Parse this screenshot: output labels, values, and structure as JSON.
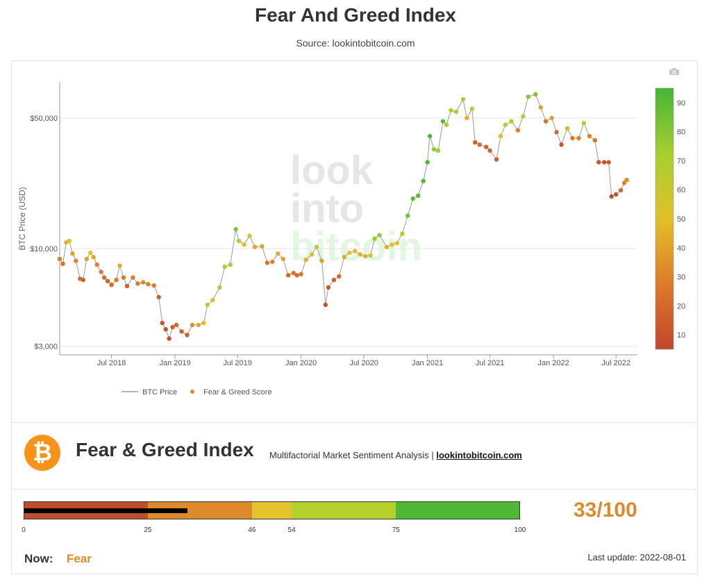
{
  "page": {
    "title": "Fear And Greed Index",
    "subtitle": "Source: lookintobitcoin.com"
  },
  "chart_data": {
    "type": "scatter",
    "ylabel": "BTC Price (USD)",
    "yscale": "log",
    "ylim": [
      2700,
      78000
    ],
    "xlim": [
      "2018-02-01",
      "2022-09-01"
    ],
    "yticks": [
      3000,
      10000,
      50000
    ],
    "ytick_labels": [
      "$3,000",
      "$10,000",
      "$50,000"
    ],
    "xticks": [
      "2018-07-01",
      "2019-01-01",
      "2019-07-01",
      "2020-01-01",
      "2020-07-01",
      "2021-01-01",
      "2021-07-01",
      "2022-01-01",
      "2022-07-01"
    ],
    "xtick_labels": [
      "Jul 2018",
      "Jan 2019",
      "Jul 2019",
      "Jan 2020",
      "Jul 2020",
      "Jan 2021",
      "Jul 2021",
      "Jan 2022",
      "Jul 2022"
    ],
    "legend": [
      "BTC Price",
      "Fear & Greed Score"
    ],
    "legend_position": "bottom-left",
    "grid": true,
    "watermark": "lookintobitcoin",
    "colorbar": {
      "ticks": [
        10,
        20,
        30,
        40,
        50,
        60,
        70,
        80,
        90
      ],
      "range": [
        5,
        95
      ]
    },
    "series": [
      {
        "name": "BTC Price",
        "points": [
          [
            "2018-02-01",
            8800,
            30
          ],
          [
            "2018-02-10",
            8300,
            25
          ],
          [
            "2018-02-20",
            10800,
            45
          ],
          [
            "2018-03-01",
            11000,
            50
          ],
          [
            "2018-03-10",
            9400,
            40
          ],
          [
            "2018-03-20",
            8600,
            30
          ],
          [
            "2018-04-01",
            6900,
            20
          ],
          [
            "2018-04-10",
            6800,
            18
          ],
          [
            "2018-04-20",
            8800,
            40
          ],
          [
            "2018-05-01",
            9500,
            50
          ],
          [
            "2018-05-10",
            9000,
            42
          ],
          [
            "2018-05-20",
            8200,
            30
          ],
          [
            "2018-06-01",
            7500,
            27
          ],
          [
            "2018-06-10",
            7000,
            22
          ],
          [
            "2018-06-20",
            6700,
            18
          ],
          [
            "2018-07-01",
            6400,
            20
          ],
          [
            "2018-07-15",
            6800,
            28
          ],
          [
            "2018-07-25",
            8100,
            45
          ],
          [
            "2018-08-05",
            7000,
            28
          ],
          [
            "2018-08-15",
            6300,
            18
          ],
          [
            "2018-09-01",
            7000,
            30
          ],
          [
            "2018-09-15",
            6500,
            28
          ],
          [
            "2018-10-01",
            6600,
            32
          ],
          [
            "2018-10-15",
            6450,
            30
          ],
          [
            "2018-11-01",
            6350,
            28
          ],
          [
            "2018-11-15",
            5500,
            15
          ],
          [
            "2018-11-25",
            4000,
            10
          ],
          [
            "2018-12-05",
            3700,
            10
          ],
          [
            "2018-12-15",
            3300,
            7
          ],
          [
            "2018-12-25",
            3800,
            15
          ],
          [
            "2019-01-05",
            3900,
            20
          ],
          [
            "2019-01-20",
            3600,
            18
          ],
          [
            "2019-02-05",
            3450,
            15
          ],
          [
            "2019-02-20",
            3900,
            35
          ],
          [
            "2019-03-10",
            3900,
            42
          ],
          [
            "2019-03-25",
            4000,
            48
          ],
          [
            "2019-04-05",
            5000,
            62
          ],
          [
            "2019-04-20",
            5300,
            60
          ],
          [
            "2019-05-10",
            6200,
            68
          ],
          [
            "2019-05-25",
            8000,
            70
          ],
          [
            "2019-06-10",
            8200,
            68
          ],
          [
            "2019-06-26",
            12700,
            82
          ],
          [
            "2019-07-05",
            11000,
            65
          ],
          [
            "2019-07-20",
            10500,
            55
          ],
          [
            "2019-08-05",
            11700,
            60
          ],
          [
            "2019-08-20",
            10200,
            42
          ],
          [
            "2019-09-10",
            10300,
            40
          ],
          [
            "2019-09-25",
            8400,
            25
          ],
          [
            "2019-10-10",
            8500,
            30
          ],
          [
            "2019-10-26",
            9400,
            45
          ],
          [
            "2019-11-10",
            8800,
            40
          ],
          [
            "2019-11-25",
            7200,
            20
          ],
          [
            "2019-12-10",
            7400,
            25
          ],
          [
            "2019-12-20",
            7200,
            22
          ],
          [
            "2020-01-01",
            7300,
            28
          ],
          [
            "2020-01-15",
            8700,
            45
          ],
          [
            "2020-02-01",
            9300,
            55
          ],
          [
            "2020-02-15",
            10200,
            58
          ],
          [
            "2020-03-01",
            8600,
            40
          ],
          [
            "2020-03-12",
            5000,
            10
          ],
          [
            "2020-03-20",
            6200,
            12
          ],
          [
            "2020-04-05",
            6800,
            15
          ],
          [
            "2020-04-20",
            7100,
            20
          ],
          [
            "2020-05-05",
            9000,
            42
          ],
          [
            "2020-05-20",
            9500,
            50
          ],
          [
            "2020-06-05",
            9700,
            52
          ],
          [
            "2020-06-20",
            9300,
            45
          ],
          [
            "2020-07-05",
            9100,
            45
          ],
          [
            "2020-07-20",
            9200,
            52
          ],
          [
            "2020-08-01",
            11300,
            75
          ],
          [
            "2020-08-15",
            11800,
            78
          ],
          [
            "2020-09-05",
            10200,
            45
          ],
          [
            "2020-09-20",
            10500,
            50
          ],
          [
            "2020-10-05",
            10700,
            55
          ],
          [
            "2020-10-20",
            12000,
            70
          ],
          [
            "2020-11-05",
            15000,
            85
          ],
          [
            "2020-11-20",
            18500,
            90
          ],
          [
            "2020-12-05",
            19200,
            90
          ],
          [
            "2020-12-20",
            23000,
            92
          ],
          [
            "2021-01-01",
            29000,
            93
          ],
          [
            "2021-01-08",
            40000,
            92
          ],
          [
            "2021-01-20",
            34000,
            78
          ],
          [
            "2021-02-01",
            33500,
            75
          ],
          [
            "2021-02-15",
            48000,
            90
          ],
          [
            "2021-02-25",
            46000,
            70
          ],
          [
            "2021-03-10",
            55000,
            72
          ],
          [
            "2021-03-25",
            54000,
            65
          ],
          [
            "2021-04-14",
            63000,
            70
          ],
          [
            "2021-04-25",
            50000,
            45
          ],
          [
            "2021-05-10",
            56000,
            60
          ],
          [
            "2021-05-19",
            37000,
            15
          ],
          [
            "2021-06-01",
            36000,
            20
          ],
          [
            "2021-06-20",
            35000,
            18
          ],
          [
            "2021-07-01",
            33500,
            20
          ],
          [
            "2021-07-20",
            30000,
            15
          ],
          [
            "2021-08-01",
            40000,
            55
          ],
          [
            "2021-08-15",
            46000,
            70
          ],
          [
            "2021-09-01",
            48000,
            72
          ],
          [
            "2021-09-20",
            43000,
            30
          ],
          [
            "2021-10-05",
            51000,
            70
          ],
          [
            "2021-10-20",
            65000,
            80
          ],
          [
            "2021-11-10",
            67000,
            82
          ],
          [
            "2021-11-25",
            57000,
            40
          ],
          [
            "2021-12-10",
            48000,
            25
          ],
          [
            "2021-12-27",
            50000,
            40
          ],
          [
            "2022-01-10",
            42000,
            20
          ],
          [
            "2022-01-24",
            36000,
            12
          ],
          [
            "2022-02-10",
            44000,
            45
          ],
          [
            "2022-02-25",
            39000,
            25
          ],
          [
            "2022-03-15",
            39000,
            30
          ],
          [
            "2022-03-30",
            47000,
            60
          ],
          [
            "2022-04-15",
            40000,
            30
          ],
          [
            "2022-05-01",
            38000,
            25
          ],
          [
            "2022-05-12",
            29000,
            12
          ],
          [
            "2022-05-28",
            29000,
            12
          ],
          [
            "2022-06-10",
            29000,
            15
          ],
          [
            "2022-06-18",
            19000,
            8
          ],
          [
            "2022-07-01",
            19500,
            10
          ],
          [
            "2022-07-15",
            20500,
            20
          ],
          [
            "2022-07-25",
            22500,
            30
          ],
          [
            "2022-08-01",
            23300,
            33
          ]
        ]
      }
    ]
  },
  "index_panel": {
    "logo_symbol": "₿",
    "title": "Fear & Greed Index",
    "subtitle": "Multifactorial Market Sentiment Analysis |",
    "link": "lookintobitcoin.com",
    "gauge_segments": [
      {
        "from": 0,
        "to": 25,
        "color": "#bf4e2e"
      },
      {
        "from": 25,
        "to": 46,
        "color": "#dd8a2a"
      },
      {
        "from": 46,
        "to": 54,
        "color": "#e3c42a"
      },
      {
        "from": 54,
        "to": 75,
        "color": "#b6d12f"
      },
      {
        "from": 75,
        "to": 100,
        "color": "#4fb935"
      }
    ],
    "gauge_ticks": [
      "0",
      "25",
      "46",
      "54",
      "75",
      "100"
    ],
    "score_value": 33,
    "score": "33/100",
    "now_label": "Now:",
    "now_value": "Fear",
    "last_update": "Last update: 2022-08-01"
  }
}
